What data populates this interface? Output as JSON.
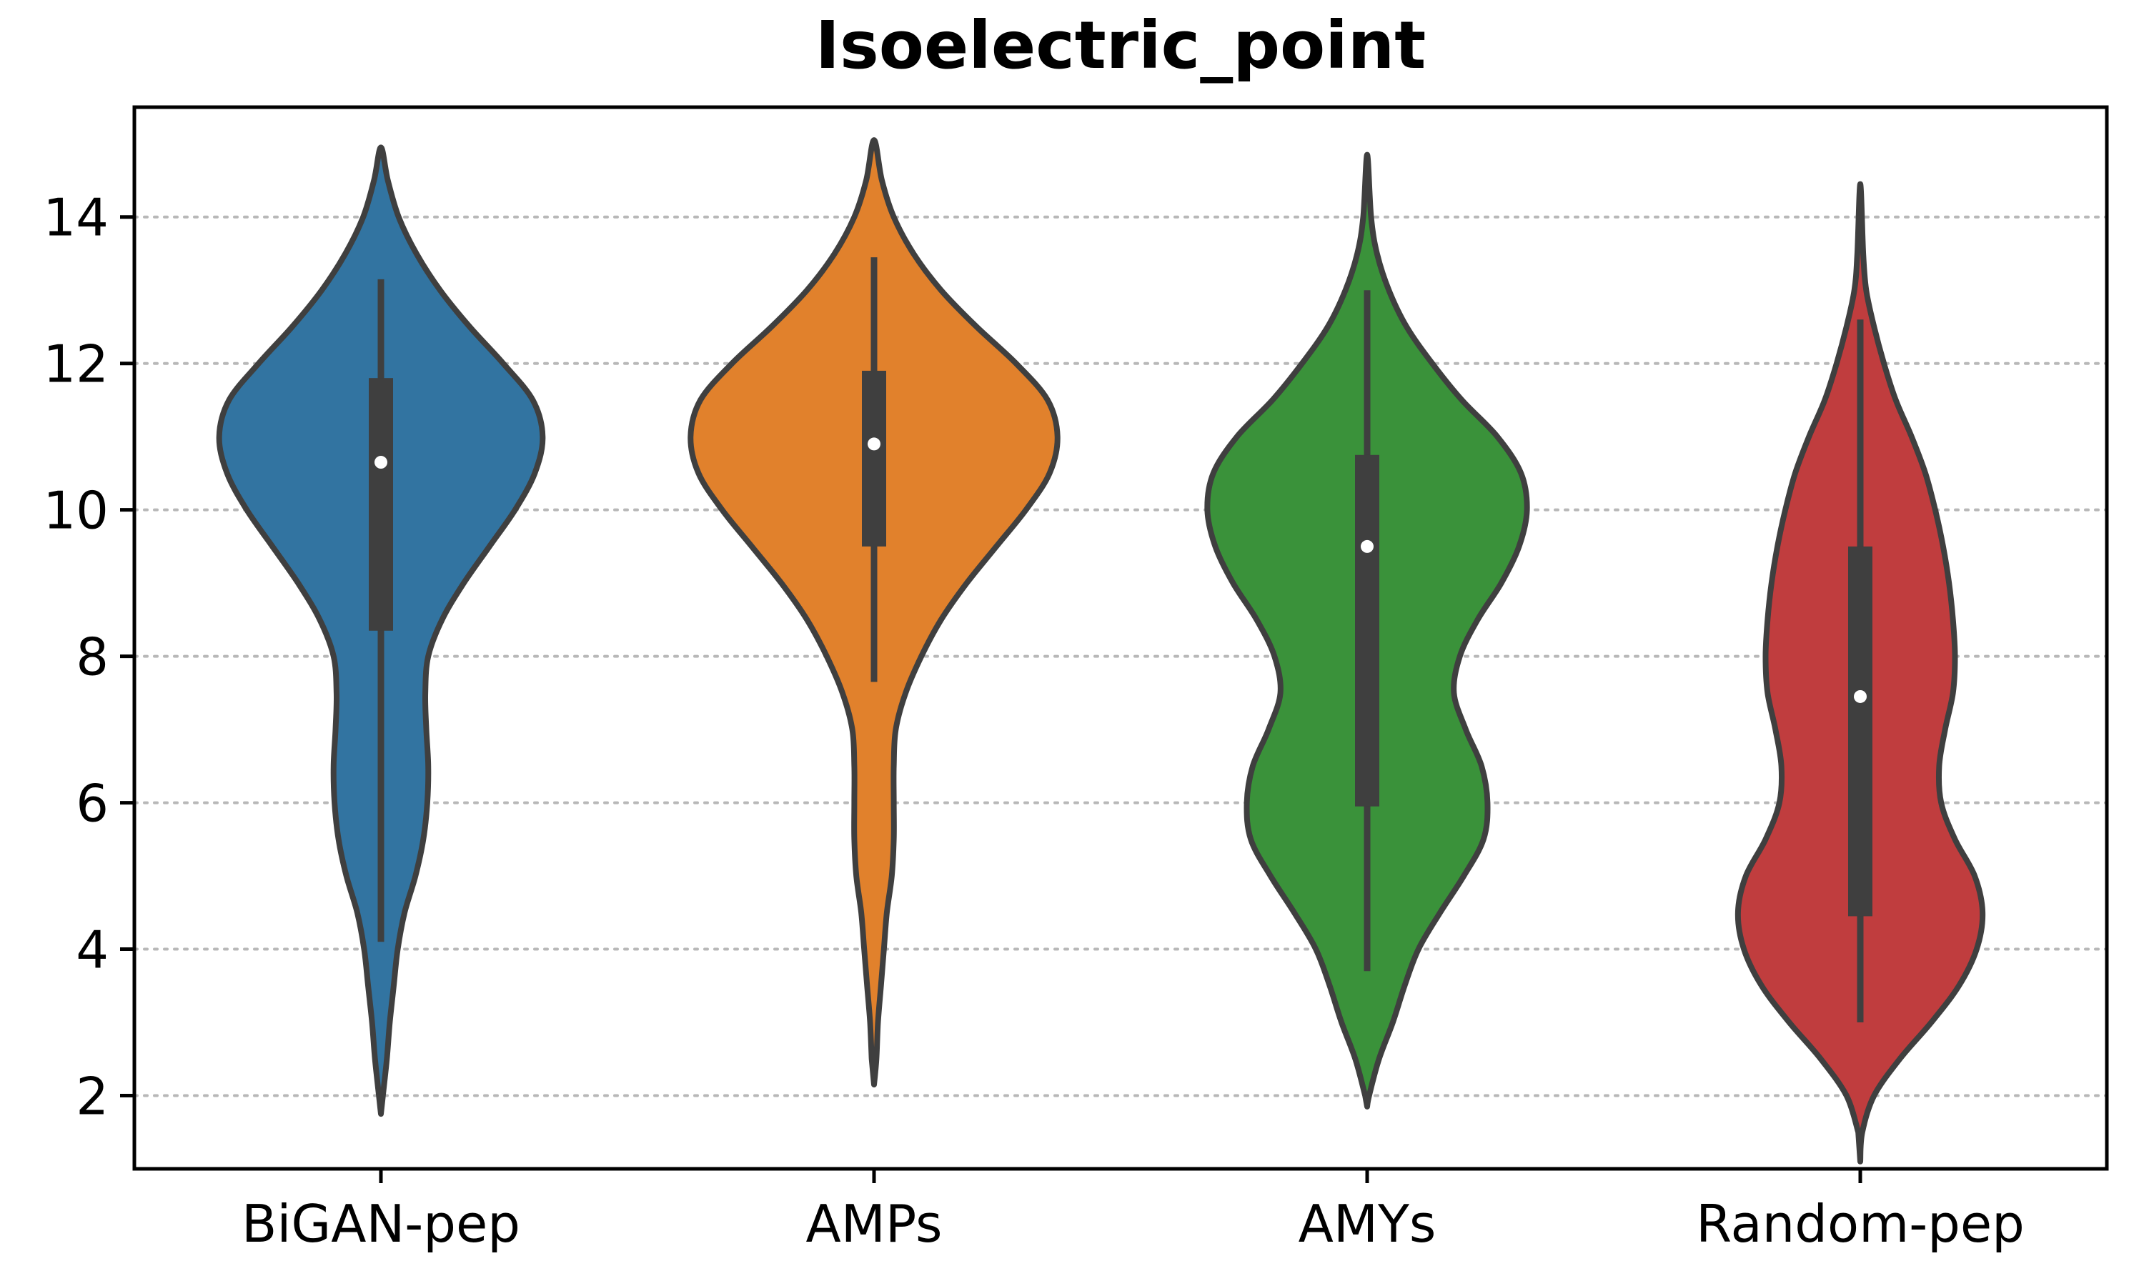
{
  "chart_data": {
    "type": "violin",
    "title": "Isoelectric_point",
    "xlabel": "",
    "ylabel": "",
    "ylim": [
      1.0,
      15.5
    ],
    "yticks": [
      2,
      4,
      6,
      8,
      10,
      12,
      14
    ],
    "grid": "horizontal dotted",
    "categories": [
      "BiGAN-pep",
      "AMPs",
      "AMYs",
      "Random-pep"
    ],
    "colors": [
      "#3274a1",
      "#e1812c",
      "#3a923a",
      "#c03d3e"
    ],
    "series": [
      {
        "category": "BiGAN-pep",
        "median": 10.65,
        "q1": 8.35,
        "q3": 11.8,
        "whisker_low": 4.1,
        "whisker_high": 13.15,
        "density": [
          [
            1.75,
            0.0
          ],
          [
            2.0,
            0.01
          ],
          [
            2.5,
            0.03
          ],
          [
            3.0,
            0.045
          ],
          [
            3.5,
            0.065
          ],
          [
            4.0,
            0.085
          ],
          [
            4.5,
            0.12
          ],
          [
            5.0,
            0.175
          ],
          [
            5.5,
            0.215
          ],
          [
            6.0,
            0.235
          ],
          [
            6.5,
            0.24
          ],
          [
            7.0,
            0.23
          ],
          [
            7.5,
            0.225
          ],
          [
            8.0,
            0.24
          ],
          [
            8.5,
            0.31
          ],
          [
            9.0,
            0.42
          ],
          [
            9.5,
            0.55
          ],
          [
            10.0,
            0.68
          ],
          [
            10.5,
            0.78
          ],
          [
            11.0,
            0.82
          ],
          [
            11.5,
            0.77
          ],
          [
            12.0,
            0.62
          ],
          [
            12.5,
            0.45
          ],
          [
            13.0,
            0.3
          ],
          [
            13.5,
            0.18
          ],
          [
            14.0,
            0.09
          ],
          [
            14.5,
            0.035
          ],
          [
            14.95,
            0.0
          ]
        ]
      },
      {
        "category": "AMPs",
        "median": 10.9,
        "q1": 9.5,
        "q3": 11.9,
        "whisker_low": 7.65,
        "whisker_high": 13.45,
        "density": [
          [
            2.15,
            0.0
          ],
          [
            2.5,
            0.012
          ],
          [
            3.0,
            0.02
          ],
          [
            3.5,
            0.035
          ],
          [
            4.0,
            0.05
          ],
          [
            4.5,
            0.065
          ],
          [
            5.0,
            0.09
          ],
          [
            5.5,
            0.1
          ],
          [
            6.0,
            0.1
          ],
          [
            6.5,
            0.1
          ],
          [
            7.0,
            0.11
          ],
          [
            7.5,
            0.16
          ],
          [
            8.0,
            0.24
          ],
          [
            8.5,
            0.34
          ],
          [
            9.0,
            0.47
          ],
          [
            9.5,
            0.62
          ],
          [
            10.0,
            0.77
          ],
          [
            10.5,
            0.89
          ],
          [
            11.0,
            0.93
          ],
          [
            11.5,
            0.88
          ],
          [
            12.0,
            0.72
          ],
          [
            12.5,
            0.52
          ],
          [
            13.0,
            0.34
          ],
          [
            13.5,
            0.2
          ],
          [
            14.0,
            0.1
          ],
          [
            14.5,
            0.04
          ],
          [
            15.05,
            0.0
          ]
        ]
      },
      {
        "category": "AMYs",
        "median": 9.5,
        "q1": 5.95,
        "q3": 10.75,
        "whisker_low": 3.7,
        "whisker_high": 13.0,
        "density": [
          [
            1.85,
            0.0
          ],
          [
            2.0,
            0.01
          ],
          [
            2.5,
            0.06
          ],
          [
            3.0,
            0.13
          ],
          [
            3.5,
            0.19
          ],
          [
            4.0,
            0.26
          ],
          [
            4.5,
            0.37
          ],
          [
            5.0,
            0.49
          ],
          [
            5.5,
            0.59
          ],
          [
            6.0,
            0.61
          ],
          [
            6.5,
            0.58
          ],
          [
            7.0,
            0.5
          ],
          [
            7.5,
            0.44
          ],
          [
            8.0,
            0.47
          ],
          [
            8.5,
            0.56
          ],
          [
            9.0,
            0.68
          ],
          [
            9.5,
            0.77
          ],
          [
            10.0,
            0.81
          ],
          [
            10.5,
            0.78
          ],
          [
            11.0,
            0.66
          ],
          [
            11.5,
            0.48
          ],
          [
            12.0,
            0.33
          ],
          [
            12.5,
            0.2
          ],
          [
            13.0,
            0.11
          ],
          [
            13.5,
            0.05
          ],
          [
            14.0,
            0.02
          ],
          [
            14.85,
            0.0
          ]
        ]
      },
      {
        "category": "Random-pep",
        "median": 7.45,
        "q1": 4.45,
        "q3": 9.5,
        "whisker_low": 3.0,
        "whisker_high": 12.6,
        "density": [
          [
            1.1,
            0.0
          ],
          [
            1.5,
            0.01
          ],
          [
            2.0,
            0.07
          ],
          [
            2.5,
            0.2
          ],
          [
            3.0,
            0.36
          ],
          [
            3.5,
            0.5
          ],
          [
            4.0,
            0.59
          ],
          [
            4.5,
            0.62
          ],
          [
            5.0,
            0.58
          ],
          [
            5.5,
            0.48
          ],
          [
            6.0,
            0.41
          ],
          [
            6.5,
            0.4
          ],
          [
            7.0,
            0.43
          ],
          [
            7.5,
            0.47
          ],
          [
            8.0,
            0.48
          ],
          [
            8.5,
            0.47
          ],
          [
            9.0,
            0.45
          ],
          [
            9.5,
            0.42
          ],
          [
            10.0,
            0.38
          ],
          [
            10.5,
            0.33
          ],
          [
            11.0,
            0.26
          ],
          [
            11.5,
            0.18
          ],
          [
            12.0,
            0.12
          ],
          [
            12.5,
            0.07
          ],
          [
            13.0,
            0.03
          ],
          [
            13.5,
            0.015
          ],
          [
            14.45,
            0.0
          ]
        ]
      }
    ]
  }
}
